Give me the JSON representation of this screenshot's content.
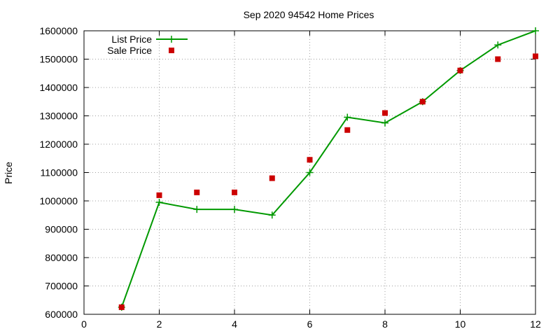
{
  "chart_data": {
    "type": "line",
    "title": "Sep 2020 94542 Home Prices",
    "xlabel": "",
    "ylabel": "Price",
    "xlim": [
      0,
      12
    ],
    "ylim": [
      600000,
      1600000
    ],
    "x_ticks": [
      0,
      2,
      4,
      6,
      8,
      10,
      12
    ],
    "y_ticks": [
      600000,
      700000,
      800000,
      900000,
      1000000,
      1100000,
      1200000,
      1300000,
      1400000,
      1500000,
      1600000
    ],
    "grid": true,
    "legend_position": "top-left",
    "series": [
      {
        "name": "List Price",
        "style": "line-with-plus-markers",
        "color": "#009900",
        "x": [
          1,
          2,
          3,
          4,
          5,
          6,
          7,
          8,
          9,
          10,
          11,
          12
        ],
        "y": [
          625000,
          995000,
          970000,
          970000,
          950000,
          1100000,
          1295000,
          1275000,
          1350000,
          1460000,
          1550000,
          1600000
        ]
      },
      {
        "name": "Sale Price",
        "style": "square-markers",
        "color": "#cc0000",
        "x": [
          1,
          2,
          3,
          4,
          5,
          6,
          7,
          8,
          9,
          10,
          11,
          12
        ],
        "y": [
          625000,
          1020000,
          1030000,
          1030000,
          1080000,
          1145000,
          1250000,
          1310000,
          1350000,
          1460000,
          1500000,
          1510000
        ]
      }
    ]
  }
}
